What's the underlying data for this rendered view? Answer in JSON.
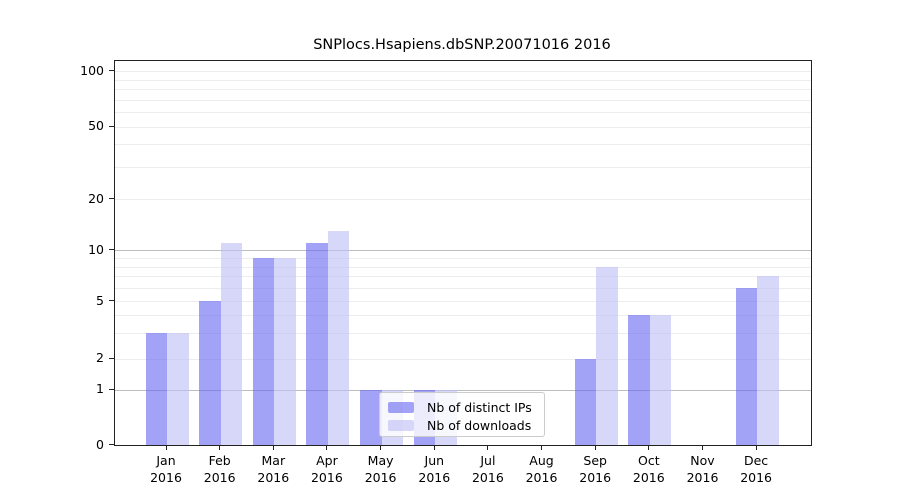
{
  "figure": {
    "title": "SNPlocs.Hsapiens.dbSNP.20071016 2016",
    "background": "#ffffff"
  },
  "chart_data": {
    "type": "bar",
    "title": "SNPlocs.Hsapiens.dbSNP.20071016 2016",
    "categories": [
      "Jan 2016",
      "Feb 2016",
      "Mar 2016",
      "Apr 2016",
      "May 2016",
      "Jun 2016",
      "Jul 2016",
      "Aug 2016",
      "Sep 2016",
      "Oct 2016",
      "Nov 2016",
      "Dec 2016"
    ],
    "series": [
      {
        "name": "Nb of distinct IPs",
        "values": [
          3,
          5,
          9,
          11,
          1,
          1,
          0,
          0,
          2,
          4,
          0,
          6
        ],
        "color": "#6464f0",
        "alpha": 0.6
      },
      {
        "name": "Nb of downloads",
        "values": [
          3,
          11,
          9,
          13,
          1,
          1,
          0,
          0,
          8,
          4,
          0,
          7
        ],
        "color": "#bebef5",
        "alpha": 0.62
      }
    ],
    "yticks": [
      0,
      1,
      2,
      5,
      10,
      20,
      50,
      100
    ],
    "ylim": [
      0,
      112
    ],
    "yscale": "log-like (linear 0-1, logarithmic between ticks)",
    "xlabel": "",
    "ylabel": "",
    "grid": {
      "minor_values": [
        2,
        3,
        4,
        5,
        6,
        7,
        8,
        9,
        20,
        30,
        40,
        50,
        60,
        70,
        80,
        90,
        100
      ],
      "major_values": [
        1,
        10
      ],
      "minor_color": "#ededed",
      "major_color": "#bdbdbd"
    },
    "legend": {
      "labels": [
        "Nb of distinct IPs",
        "Nb of downloads"
      ],
      "position": "inside lower-center-left"
    }
  }
}
